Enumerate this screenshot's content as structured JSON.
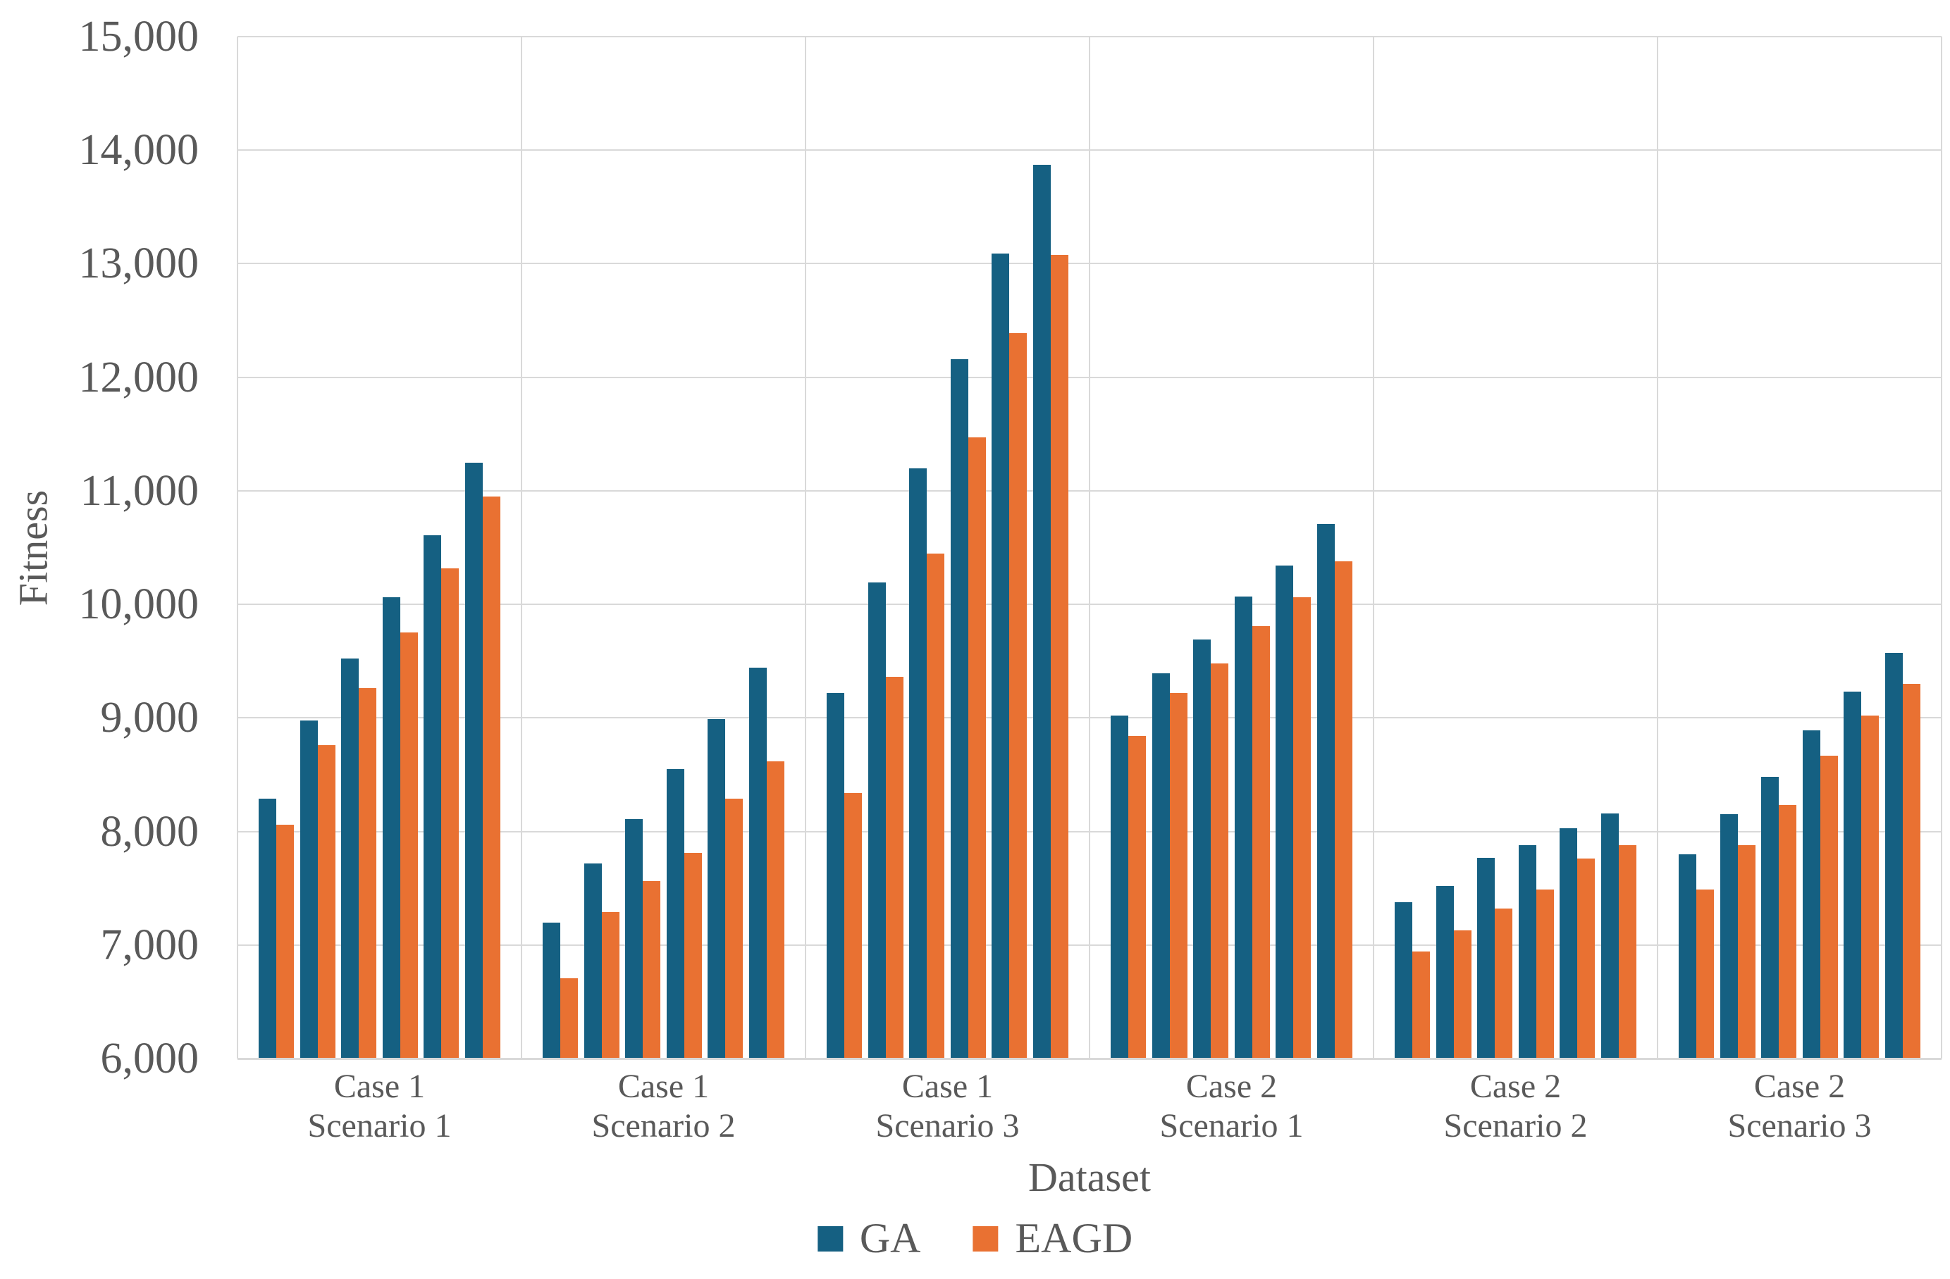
{
  "chart_data": {
    "type": "bar",
    "title": "",
    "xlabel": "Dataset",
    "ylabel": "Fitness",
    "ylim": [
      6000,
      15000
    ],
    "ytick_step": 1000,
    "ytick_labels": [
      "6,000",
      "7,000",
      "8,000",
      "9,000",
      "10,000",
      "11,000",
      "12,000",
      "13,000",
      "14,000",
      "15,000"
    ],
    "grid": true,
    "legend_position": "bottom",
    "series_names": [
      "GA",
      "EAGD"
    ],
    "groups": [
      {
        "label_line1": "Case 1",
        "label_line2": "Scenario 1",
        "GA": [
          8290,
          8980,
          9520,
          10060,
          10610,
          11250
        ],
        "EAGD": [
          8060,
          8760,
          9260,
          9750,
          10320,
          10950
        ]
      },
      {
        "label_line1": "Case 1",
        "label_line2": "Scenario 2",
        "GA": [
          7200,
          7720,
          8110,
          8550,
          8990,
          9440
        ],
        "EAGD": [
          6710,
          7290,
          7560,
          7810,
          8290,
          8620
        ]
      },
      {
        "label_line1": "Case 1",
        "label_line2": "Scenario 3",
        "GA": [
          9220,
          10190,
          11200,
          12160,
          13090,
          13870
        ],
        "EAGD": [
          8340,
          9360,
          10450,
          11470,
          12390,
          13080
        ]
      },
      {
        "label_line1": "Case 2",
        "label_line2": "Scenario 1",
        "GA": [
          9020,
          9390,
          9690,
          10070,
          10340,
          10710
        ],
        "EAGD": [
          8840,
          9220,
          9480,
          9810,
          10060,
          10380
        ]
      },
      {
        "label_line1": "Case 2",
        "label_line2": "Scenario 2",
        "GA": [
          7380,
          7520,
          7770,
          7880,
          8030,
          8160
        ],
        "EAGD": [
          6940,
          7130,
          7320,
          7490,
          7760,
          7880
        ]
      },
      {
        "label_line1": "Case 2",
        "label_line2": "Scenario 3",
        "GA": [
          7800,
          8150,
          8480,
          8890,
          9230,
          9570
        ],
        "EAGD": [
          7490,
          7880,
          8230,
          8670,
          9020,
          9300
        ]
      }
    ]
  },
  "legend": {
    "ga_label": "GA",
    "eagd_label": "EAGD"
  },
  "colors": {
    "ga": "#156082",
    "eagd": "#E97132",
    "grid": "#D9D9D9",
    "axis": "#D9D9D9",
    "text": "#595959"
  }
}
